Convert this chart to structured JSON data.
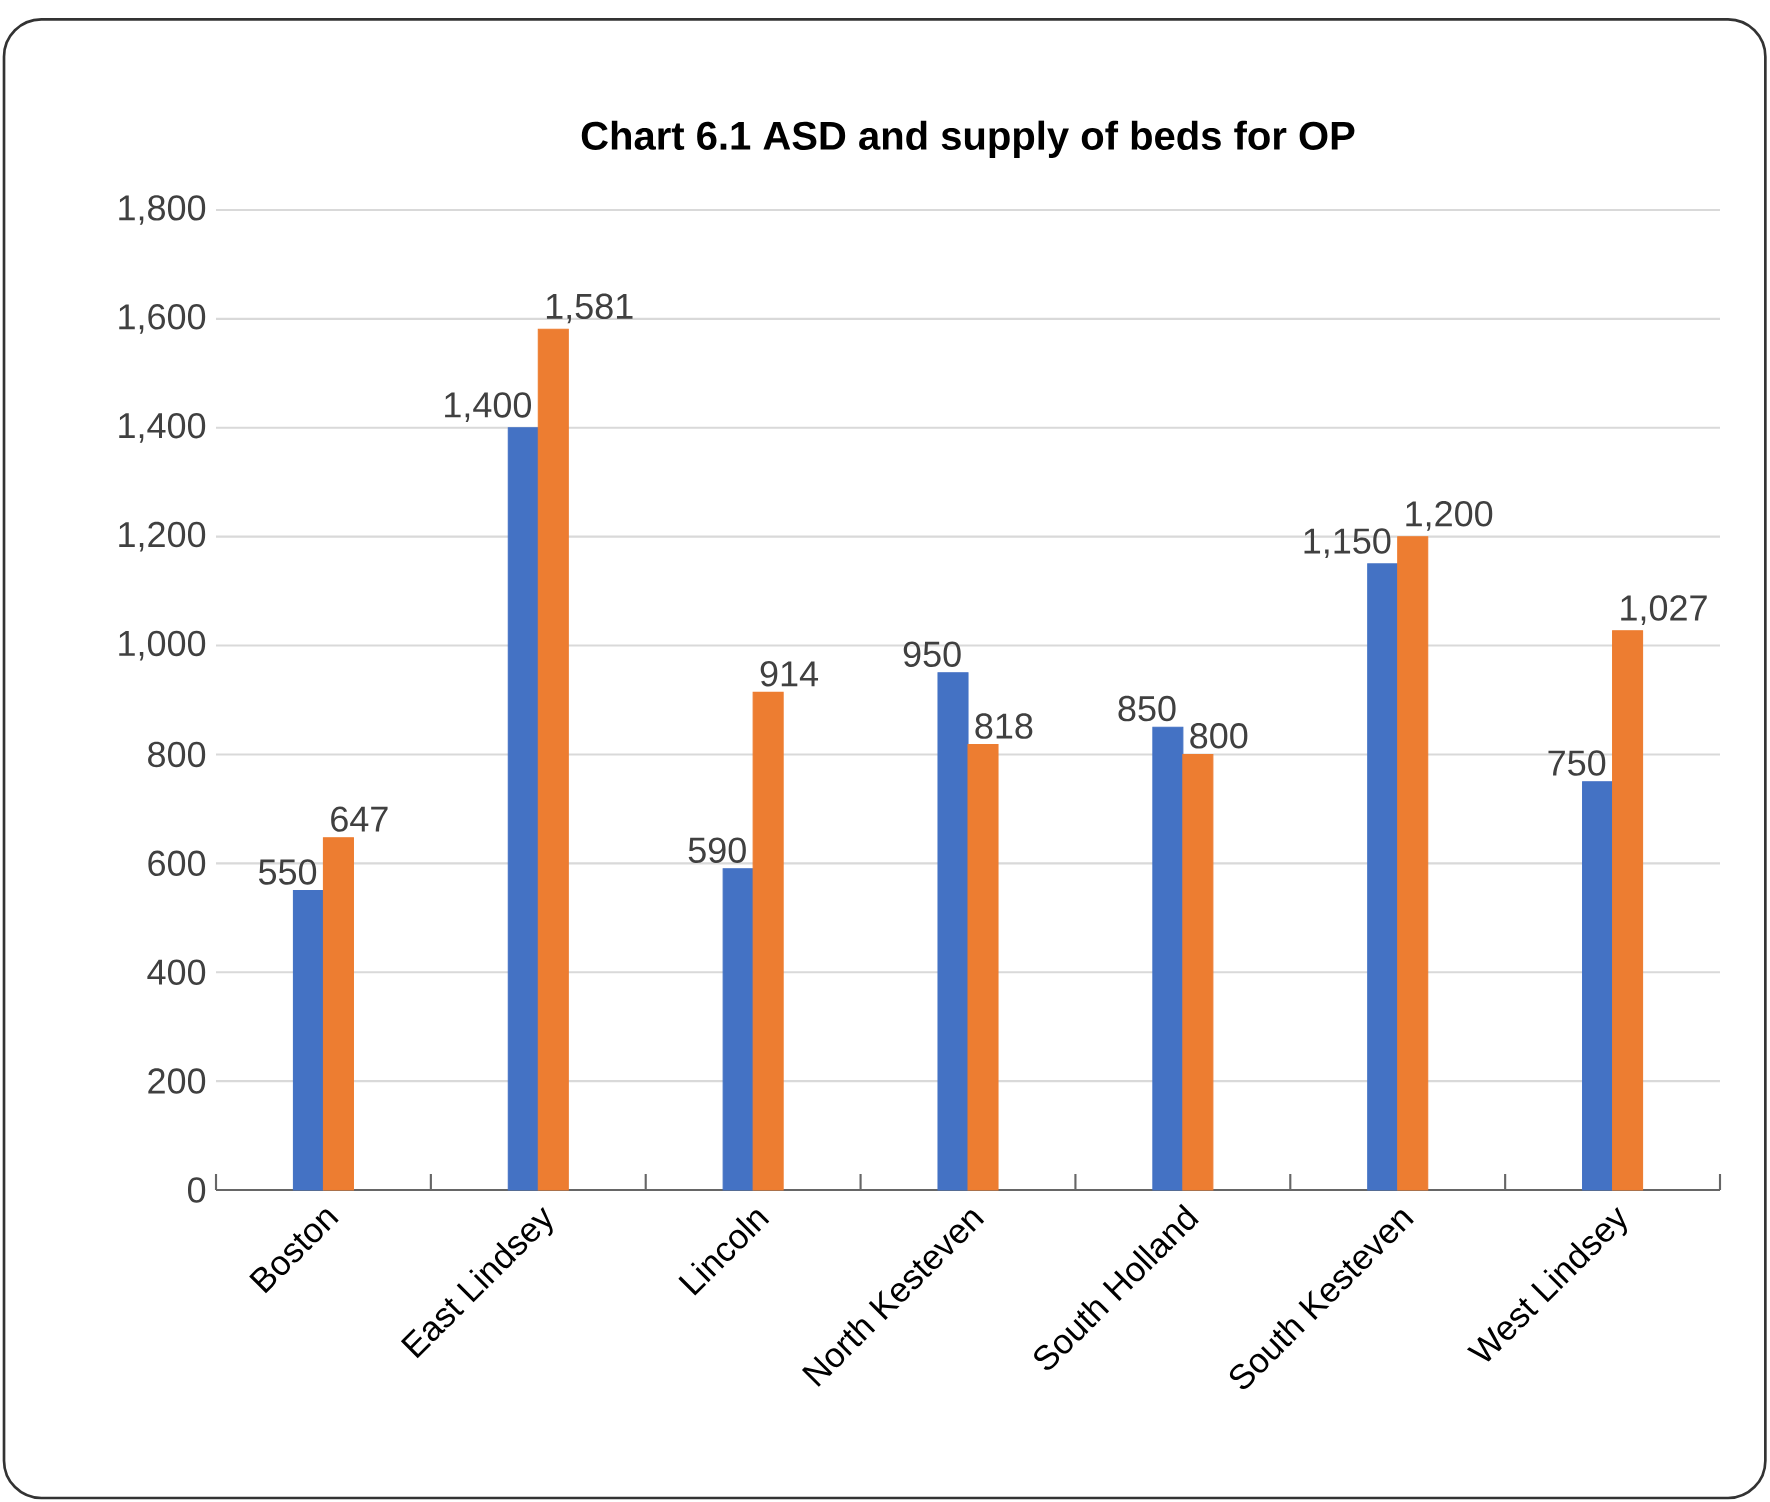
{
  "chart_data": {
    "type": "bar",
    "title": "Chart 6.1 ASD and supply of beds for OP",
    "categories": [
      "Boston",
      "East Lindsey",
      "Lincoln",
      "North Kesteven",
      "South Holland",
      "South Kesteven",
      "West Lindsey"
    ],
    "series": [
      {
        "color": "#4472c4",
        "values": [
          550,
          1400,
          590,
          950,
          850,
          1150,
          750
        ],
        "value_labels": [
          "550",
          "1,400",
          "590",
          "950",
          "850",
          "1,150",
          "750"
        ]
      },
      {
        "color": "#ed7d31",
        "values": [
          647,
          1581,
          914,
          818,
          800,
          1200,
          1027
        ],
        "value_labels": [
          "647",
          "1,581",
          "914",
          "818",
          "800",
          "1,200",
          "1,027"
        ]
      }
    ],
    "ylim": [
      0,
      1800
    ],
    "yticks": [
      {
        "value": 0,
        "label": "0"
      },
      {
        "value": 200,
        "label": "200"
      },
      {
        "value": 400,
        "label": "400"
      },
      {
        "value": 600,
        "label": "600"
      },
      {
        "value": 800,
        "label": "800"
      },
      {
        "value": 1000,
        "label": "1,000"
      },
      {
        "value": 1200,
        "label": "1,200"
      },
      {
        "value": 1400,
        "label": "1,400"
      },
      {
        "value": 1600,
        "label": "1,600"
      },
      {
        "value": 1800,
        "label": "1,800"
      }
    ],
    "grid": "y"
  }
}
